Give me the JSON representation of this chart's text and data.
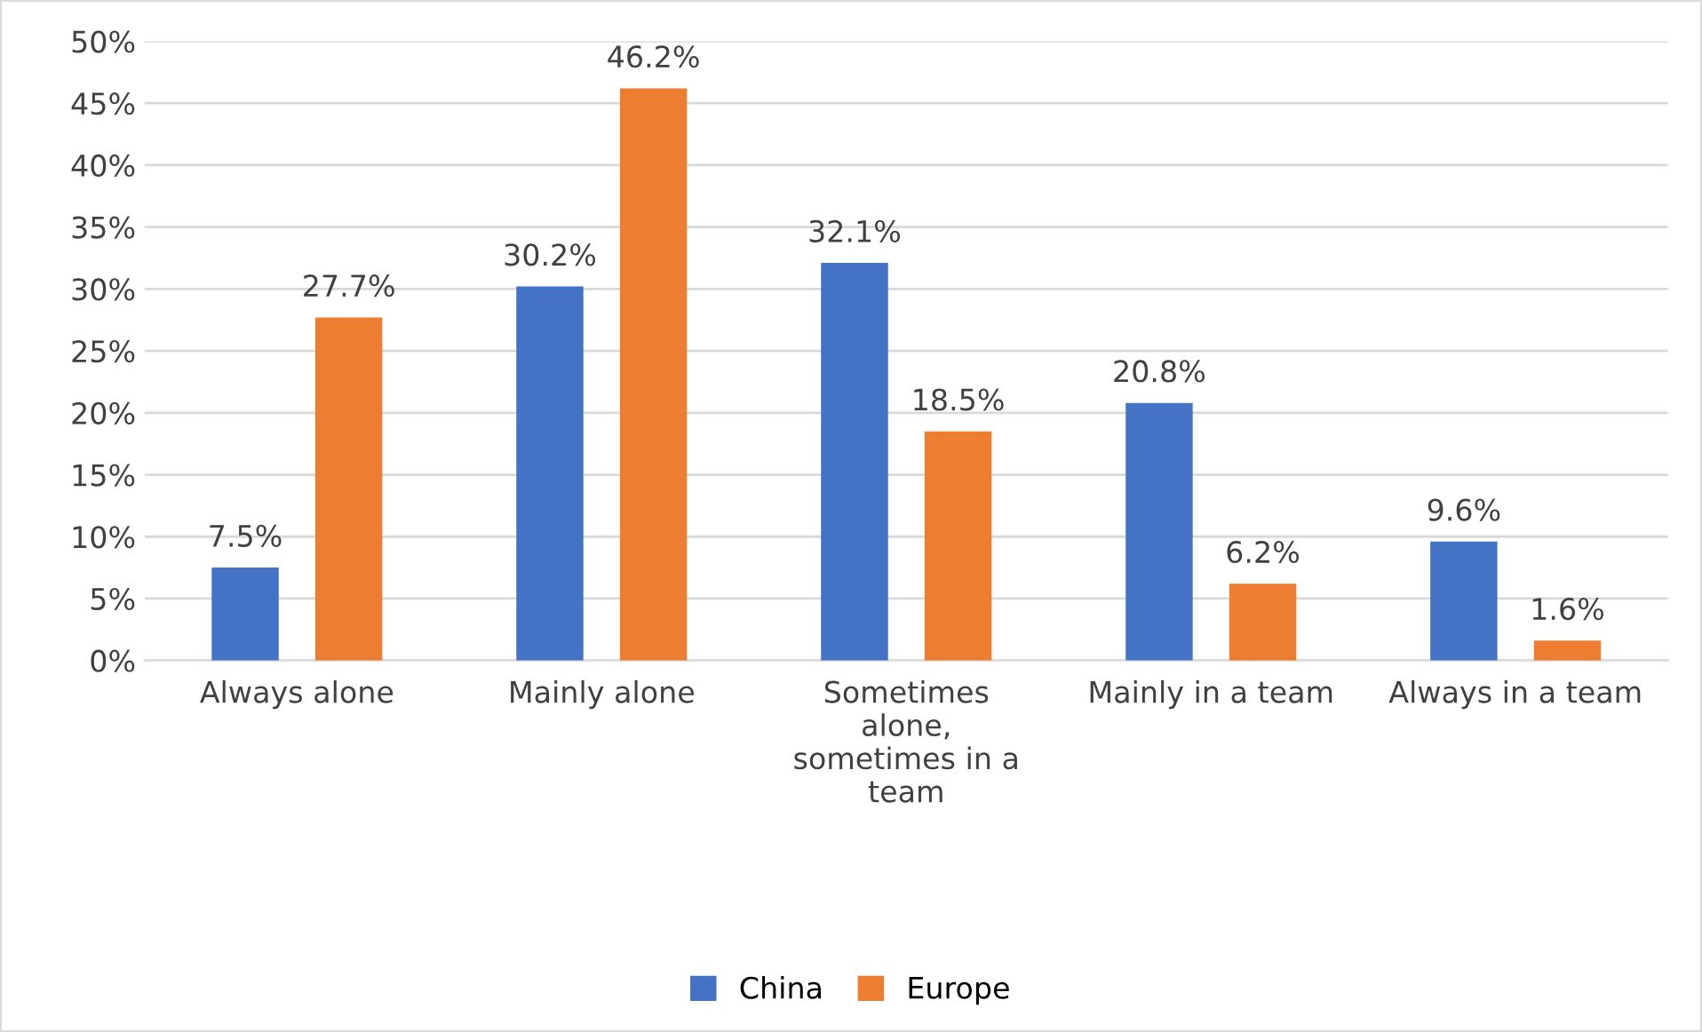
{
  "chart_data": {
    "type": "bar",
    "categories": [
      "Always alone",
      "Mainly alone",
      "Sometimes\nalone,\nsometimes in a\nteam",
      "Mainly in a team",
      "Always in a team"
    ],
    "series": [
      {
        "name": "China",
        "color": "#4472c4",
        "values": [
          7.5,
          30.2,
          32.1,
          20.8,
          9.6
        ],
        "value_labels": [
          "7.5%",
          "30.2%",
          "32.1%",
          "20.8%",
          "9.6%"
        ]
      },
      {
        "name": "Europe",
        "color": "#ed7d31",
        "values": [
          27.7,
          46.2,
          18.5,
          6.2,
          1.6
        ],
        "value_labels": [
          "27.7%",
          "46.2%",
          "18.5%",
          "6.2%",
          "1.6%"
        ]
      }
    ],
    "ylim": [
      0,
      50
    ],
    "yticks": [
      {
        "value": 0,
        "label": "0%"
      },
      {
        "value": 5,
        "label": "5%"
      },
      {
        "value": 10,
        "label": "10%"
      },
      {
        "value": 15,
        "label": "15%"
      },
      {
        "value": 20,
        "label": "20%"
      },
      {
        "value": 25,
        "label": "25%"
      },
      {
        "value": 30,
        "label": "30%"
      },
      {
        "value": 35,
        "label": "35%"
      },
      {
        "value": 40,
        "label": "40%"
      },
      {
        "value": 45,
        "label": "45%"
      },
      {
        "value": 50,
        "label": "50%"
      }
    ],
    "grid": "y",
    "legend": "bottom"
  }
}
